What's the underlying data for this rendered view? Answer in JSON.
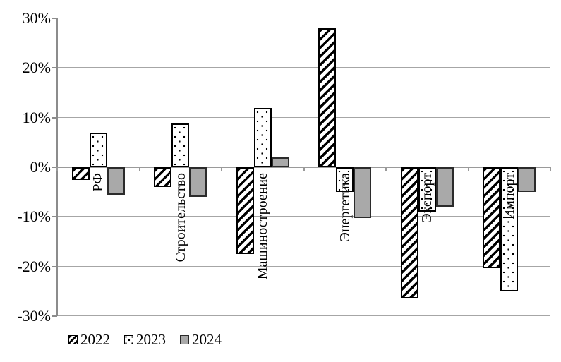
{
  "chart_data": {
    "type": "bar",
    "title": "",
    "xlabel": "",
    "ylabel": "",
    "categories": [
      "РФ",
      "Строительство",
      "Машиностроение",
      "Энергетика",
      "Экспорт",
      "Импорт"
    ],
    "series": [
      {
        "name": "2022",
        "pattern": "diagonal-hatch",
        "values": [
          -2.5,
          -4,
          -17.5,
          28,
          -26.5,
          -20.4
        ]
      },
      {
        "name": "2023",
        "pattern": "dots",
        "values": [
          7,
          8.8,
          12,
          -5,
          -9,
          -25
        ]
      },
      {
        "name": "2024",
        "pattern": "solid-gray",
        "values": [
          -5.5,
          -6,
          2,
          -10.3,
          -8,
          -5
        ]
      }
    ],
    "ylim": [
      -30,
      30
    ],
    "ytick_step": 10,
    "ytick_labels": [
      "30%",
      "20%",
      "10%",
      "0%",
      "-10%",
      "-20%",
      "-30%"
    ],
    "grid": true,
    "legend_position": "bottom-left",
    "legend_labels": [
      "2022",
      "2023",
      "2024"
    ],
    "colors": {
      "background": "#ffffff",
      "bar_2024_fill": "#a9a9a9",
      "bar_border": "#000000",
      "gridline": "#a6a6a6",
      "axis_line": "#8c8c8c",
      "text": "#000000"
    }
  }
}
